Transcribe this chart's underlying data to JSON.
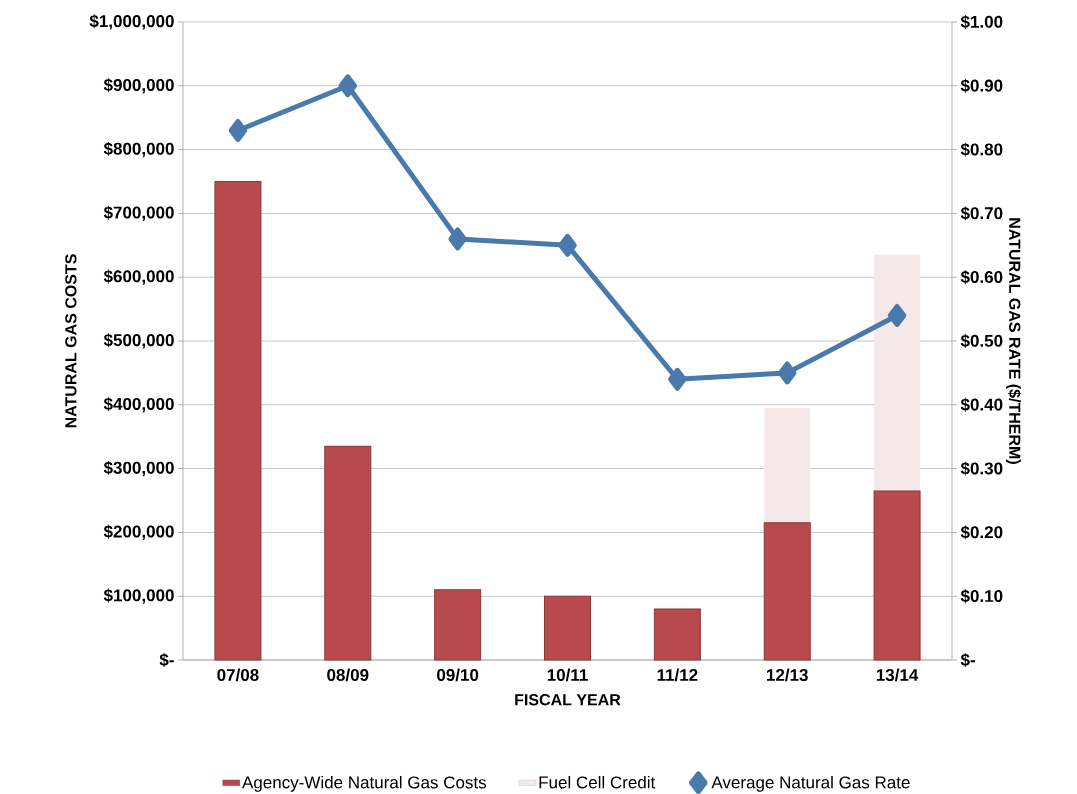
{
  "chart_data": {
    "type": "bar",
    "xlabel": "FISCAL YEAR",
    "ylabel": "NATURAL GAS COSTS",
    "y2label": "NATURAL GAS RATE ($/THERM)",
    "categories": [
      "07/08",
      "08/09",
      "09/10",
      "10/11",
      "11/12",
      "12/13",
      "13/14"
    ],
    "stacked": true,
    "grid": "y",
    "legend": "bottom",
    "marker": "diamond",
    "series": [
      {
        "name": "Agency-Wide Natural Gas Costs",
        "color": "#b84a4e",
        "values": [
          750000,
          335000,
          110000,
          100000,
          80000,
          215000,
          265000
        ]
      },
      {
        "name": "Fuel Cell Credit",
        "color": "#f5e8e8",
        "values": [
          null,
          null,
          null,
          null,
          null,
          180000,
          370000
        ]
      },
      {
        "name": "Average Natural Gas Rate",
        "type": "line",
        "axis": "y2",
        "color": "#4a7aab",
        "values": [
          0.83,
          0.9,
          0.66,
          0.65,
          0.44,
          0.45,
          0.54
        ]
      }
    ],
    "ylim": [
      0,
      1000000
    ],
    "yticks": [
      {
        "value": 0,
        "label": "$-"
      },
      {
        "value": 100000,
        "label": "$100,000"
      },
      {
        "value": 200000,
        "label": "$200,000"
      },
      {
        "value": 300000,
        "label": "$300,000"
      },
      {
        "value": 400000,
        "label": "$400,000"
      },
      {
        "value": 500000,
        "label": "$500,000"
      },
      {
        "value": 600000,
        "label": "$600,000"
      },
      {
        "value": 700000,
        "label": "$700,000"
      },
      {
        "value": 800000,
        "label": "$800,000"
      },
      {
        "value": 900000,
        "label": "$900,000"
      },
      {
        "value": 1000000,
        "label": "$1,000,000"
      }
    ],
    "y2lim": [
      0,
      1
    ],
    "y2ticks": [
      {
        "value": 0,
        "label": "$-"
      },
      {
        "value": 0.1,
        "label": "$0.10"
      },
      {
        "value": 0.2,
        "label": "$0.20"
      },
      {
        "value": 0.3,
        "label": "$0.30"
      },
      {
        "value": 0.4,
        "label": "$0.40"
      },
      {
        "value": 0.5,
        "label": "$0.50"
      },
      {
        "value": 0.6,
        "label": "$0.60"
      },
      {
        "value": 0.7,
        "label": "$0.70"
      },
      {
        "value": 0.8,
        "label": "$0.80"
      },
      {
        "value": 0.9,
        "label": "$0.90"
      },
      {
        "value": 1,
        "label": "$1.00"
      }
    ]
  }
}
